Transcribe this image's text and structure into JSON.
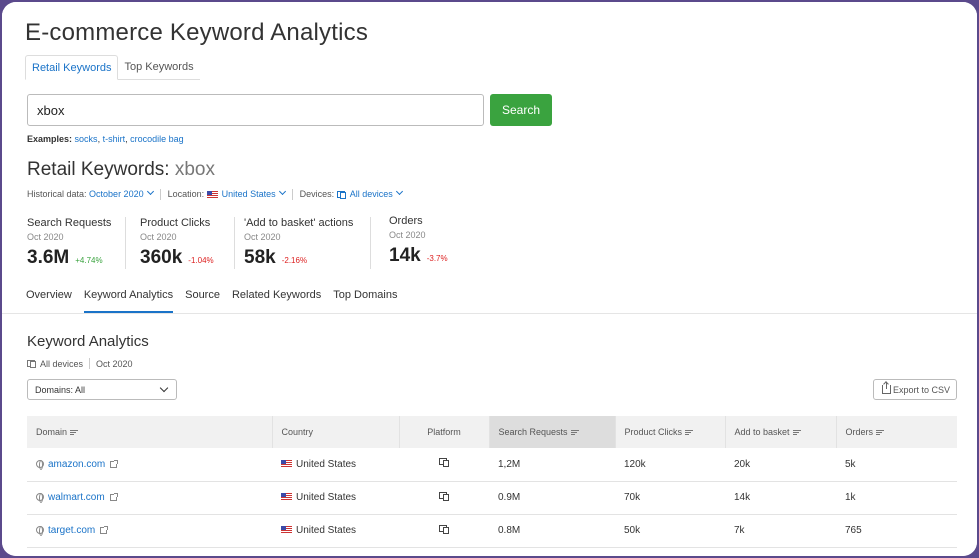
{
  "header": {
    "title": "E-commerce Keyword Analytics",
    "tabs": [
      {
        "label": "Retail Keywords",
        "active": true
      },
      {
        "label": "Top Keywords",
        "active": false
      }
    ]
  },
  "search": {
    "value": "xbox",
    "button_label": "Search",
    "examples_label": "Examples:",
    "examples": [
      "socks",
      "t-shirt",
      "crocodile bag"
    ]
  },
  "report": {
    "title_prefix": "Retail Keywords:",
    "keyword": "xbox",
    "historical_label": "Historical data:",
    "historical_value": "October 2020",
    "location_label": "Location:",
    "location_value": "United States",
    "devices_label": "Devices:",
    "devices_value": "All devices"
  },
  "metrics": [
    {
      "label": "Search Requests",
      "date": "Oct 2020",
      "value": "3.6M",
      "delta": "+4.74%",
      "trend": "up"
    },
    {
      "label": "Product Clicks",
      "date": "Oct 2020",
      "value": "360k",
      "delta": "-1.04%",
      "trend": "down"
    },
    {
      "label": "'Add to basket' actions",
      "date": "Oct 2020",
      "value": "58k",
      "delta": "-2.16%",
      "trend": "down"
    },
    {
      "label": "Orders",
      "date": "Oct 2020",
      "value": "14k",
      "delta": "-3.7%",
      "trend": "down"
    }
  ],
  "nav_tabs": [
    {
      "label": "Overview",
      "active": false
    },
    {
      "label": "Keyword Analytics",
      "active": true
    },
    {
      "label": "Source",
      "active": false
    },
    {
      "label": "Related Keywords",
      "active": false
    },
    {
      "label": "Top Domains",
      "active": false
    }
  ],
  "analytics": {
    "title": "Keyword Analytics",
    "devices": "All devices",
    "date": "Oct 2020",
    "domains_filter": "Domains: All",
    "export_label": "Export to CSV"
  },
  "table": {
    "columns": [
      "Domain",
      "Country",
      "Platform",
      "Search Requests",
      "Product Clicks",
      "Add to basket",
      "Orders"
    ],
    "rows": [
      {
        "domain": "amazon.com",
        "country": "United States",
        "search_requests": "1,2M",
        "product_clicks": "120k",
        "add_to_basket": "20k",
        "orders": "5k"
      },
      {
        "domain": "walmart.com",
        "country": "United States",
        "search_requests": "0.9M",
        "product_clicks": "70k",
        "add_to_basket": "14k",
        "orders": "1k"
      },
      {
        "domain": "target.com",
        "country": "United States",
        "search_requests": "0.8M",
        "product_clicks": "50k",
        "add_to_basket": "7k",
        "orders": "765"
      }
    ]
  },
  "colors": {
    "accent_blue": "#1a73c8",
    "search_button": "#3aa33f",
    "positive": "#3aa33f",
    "negative": "#dd2222",
    "frame": "#5b4a8c"
  }
}
